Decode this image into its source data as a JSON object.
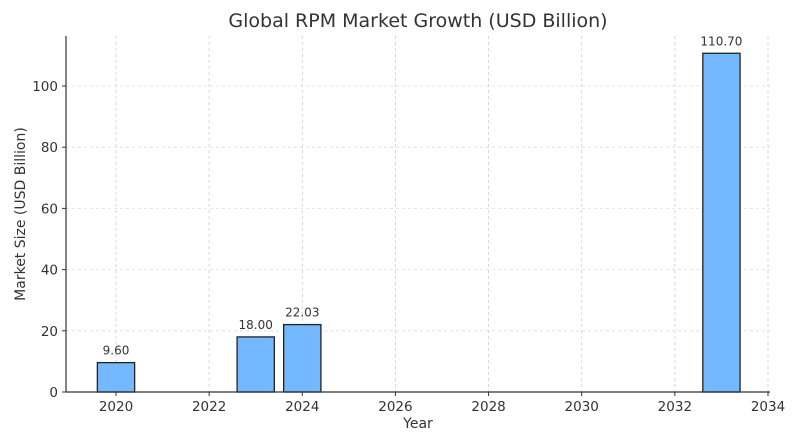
{
  "chart_data": {
    "type": "bar",
    "title": "Global RPM Market Growth (USD Billion)",
    "xlabel": "Year",
    "ylabel": "Market Size (USD Billion)",
    "categories": [
      2020,
      2023,
      2024,
      2033
    ],
    "values": [
      9.6,
      18.0,
      22.03,
      110.7
    ],
    "value_labels": [
      "9.60",
      "18.00",
      "22.03",
      "110.70"
    ],
    "xlim": [
      2019.0,
      2034.1
    ],
    "ylim": [
      0,
      116.2
    ],
    "xticks": [
      2020,
      2022,
      2024,
      2026,
      2028,
      2030,
      2032,
      2034
    ],
    "yticks": [
      0,
      20,
      40,
      60,
      80,
      100
    ],
    "grid": true,
    "grid_style": "dashed",
    "bar_width_years": 0.8,
    "bar_color": "#74b9ff",
    "bar_edge_color": "#222222",
    "legend": null
  }
}
